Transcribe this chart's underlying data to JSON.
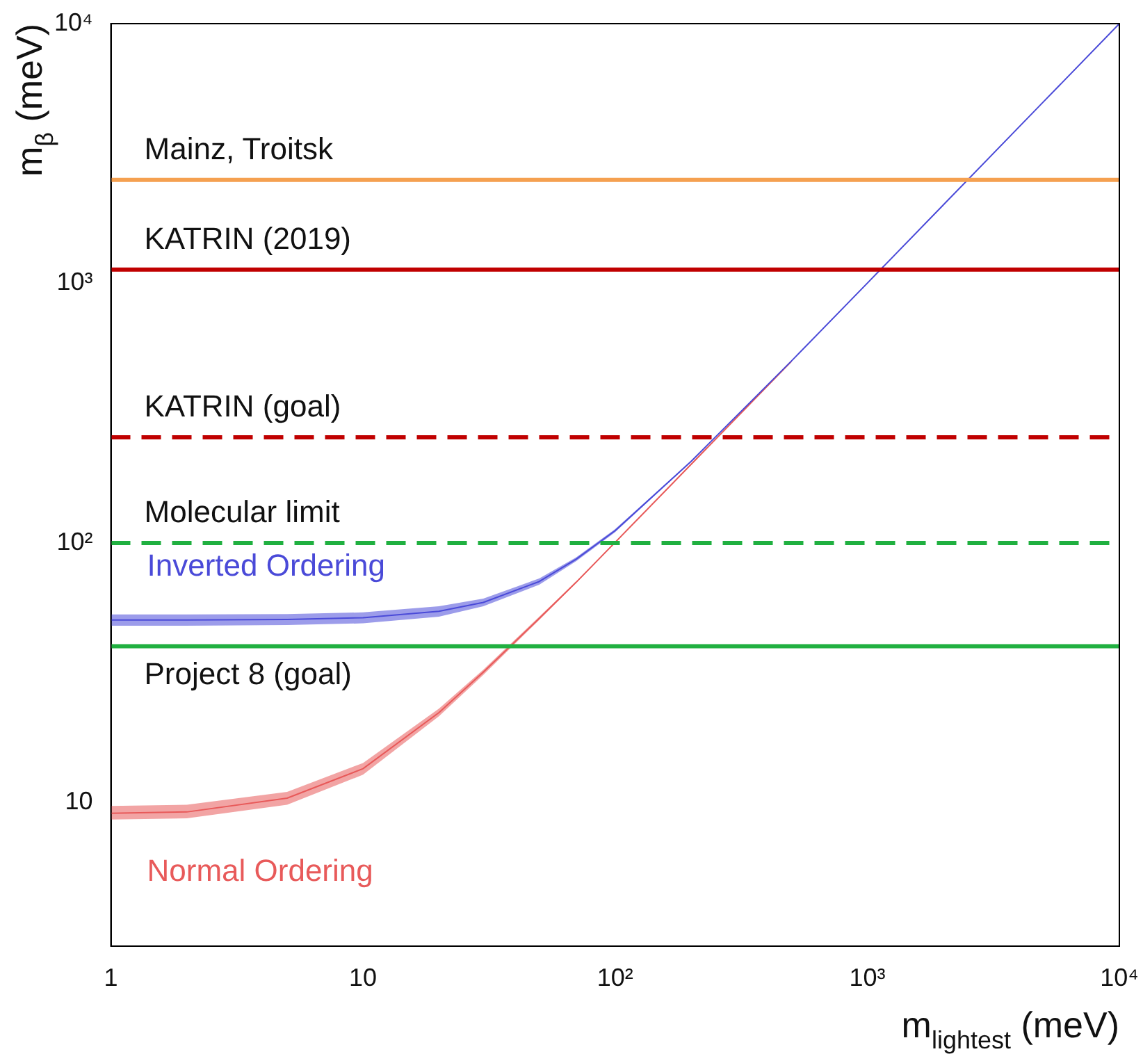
{
  "chart_data": {
    "type": "line",
    "xlabel": "m$_{lightest}$ (meV)",
    "ylabel": "m$_{β}$ (meV)",
    "log": "xy",
    "grid": false,
    "legend": false,
    "marker": "none",
    "xlim": [
      1,
      10000
    ],
    "xticks": [
      1,
      10,
      {
        "value": 100,
        "label": "10²"
      },
      {
        "value": 1000,
        "label": "10³"
      },
      {
        "value": 10000,
        "label": "10⁴"
      }
    ],
    "ylim": [
      2.8,
      10000
    ],
    "yticks": [
      10,
      {
        "value": 100,
        "label": "10²"
      },
      {
        "value": 1000,
        "label": "10³"
      },
      {
        "value": 10000,
        "label": "10⁴"
      }
    ],
    "x": [
      1,
      2,
      5,
      10,
      20,
      30,
      50,
      70,
      100,
      200,
      500,
      1000,
      2000,
      5000,
      10000
    ],
    "series": [
      {
        "name": "Inverted Ordering",
        "color": "#4a4ad8",
        "lower": [
          48,
          48,
          48.3,
          49,
          52,
          57,
          69,
          85,
          110,
          205,
          500,
          1000,
          2000,
          5000,
          10000
        ],
        "upper": [
          53,
          53,
          53.2,
          54,
          57,
          61,
          73,
          88,
          113,
          207,
          503,
          1001,
          2000,
          5000,
          10000
        ],
        "values": [
          50.5,
          50.5,
          50.7,
          51.5,
          54.5,
          59,
          71,
          86.5,
          111.5,
          206,
          501.5,
          1000.5,
          2000,
          5000,
          10000
        ]
      },
      {
        "name": "Normal Ordering",
        "color": "#e85a5a",
        "lower": [
          8.6,
          8.7,
          9.8,
          12.8,
          21.5,
          31,
          50.5,
          70,
          100,
          200,
          500,
          1000,
          2000,
          5000,
          10000
        ],
        "upper": [
          9.7,
          9.8,
          11,
          14.2,
          23,
          32.5,
          52,
          71,
          101,
          201,
          501,
          1000,
          2000,
          5000,
          10000
        ],
        "values": [
          9.1,
          9.2,
          10.4,
          13.5,
          22.2,
          31.8,
          51.2,
          70.5,
          100.5,
          200.5,
          500.5,
          null,
          null,
          null,
          null
        ]
      }
    ],
    "ref_lines": [
      {
        "axis": "y",
        "value": 2500,
        "label": "Mainz, Troitsk",
        "color": "#f5a050",
        "line_style": "solid"
      },
      {
        "axis": "y",
        "value": 1130,
        "label": "KATRIN (2019)",
        "color": "#c00000",
        "line_style": "solid"
      },
      {
        "axis": "y",
        "value": 255,
        "label": "KATRIN (goal)",
        "color": "#c00000",
        "line_style": "dashed"
      },
      {
        "axis": "y",
        "value": 100,
        "label": "Molecular limit",
        "color": "#20b040",
        "line_style": "dashed"
      },
      {
        "axis": "y",
        "value": 40,
        "label": "Project 8 (goal)",
        "color": "#20b040",
        "line_style": "solid"
      }
    ]
  }
}
